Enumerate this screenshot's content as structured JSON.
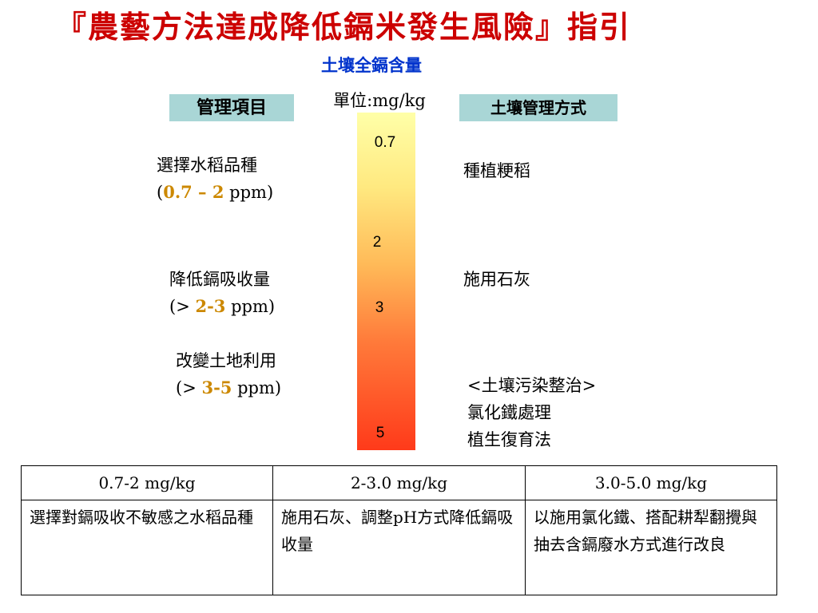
{
  "title": "『農藝方法達成降低鎘米發生風險』指引",
  "subtitle": "土壤全鎘含量",
  "unit": "單位:mg/kg",
  "headers": {
    "left": "管理項目",
    "right": "土壤管理方式"
  },
  "scale": {
    "ticks": [
      "0.7",
      "2",
      "3",
      "5"
    ],
    "colors": [
      "#ffffa8",
      "#ffe980",
      "#ffba58",
      "#ff7a3a",
      "#ff3a1a"
    ]
  },
  "management": [
    {
      "line1": "選擇水稻品種",
      "pre": "(",
      "range": "0.7 – 2",
      "post": " ppm)"
    },
    {
      "line1": "降低鎘吸收量",
      "pre": "(> ",
      "range": "2-3",
      "post": " ppm)"
    },
    {
      "line1": "改變土地利用",
      "pre": "(> ",
      "range": "3-5",
      "post": " ppm)"
    }
  ],
  "methods": [
    {
      "lines": [
        "種植粳稻"
      ]
    },
    {
      "lines": [
        "施用石灰"
      ]
    },
    {
      "lines": [
        "<土壤污染整治>",
        "氯化鐵處理",
        "植生復育法"
      ]
    }
  ],
  "table": {
    "columns": [
      "0.7-2  mg/kg",
      "2-3.0 mg/kg",
      "3.0-5.0 mg/kg"
    ],
    "rows": [
      [
        "選擇對鎘吸收不敏感之水稻品種",
        "施用石灰、調整pH方式降低鎘吸收量",
        "以施用氯化鐵、搭配耕犁翻攪與抽去含鎘廢水方式進行改良"
      ]
    ]
  }
}
